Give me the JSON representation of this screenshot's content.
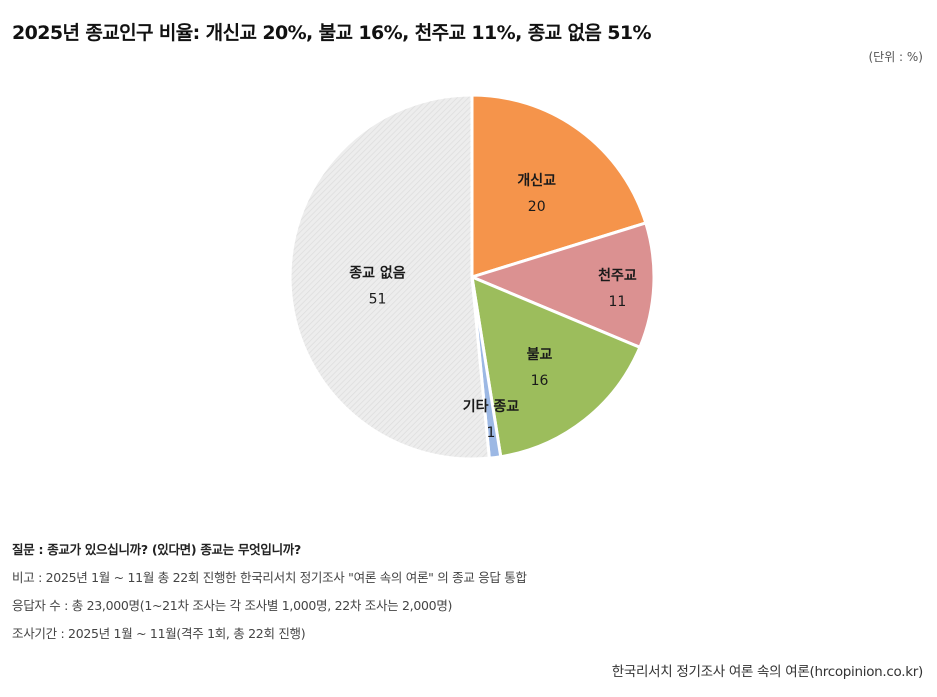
{
  "header": {
    "title": "2025년 종교인구 비율: 개신교 20%, 불교 16%, 천주교 11%, 종교 없음 51%",
    "unit": "(단위 : %)"
  },
  "chart_data": {
    "type": "pie",
    "title": "2025년 종교인구 비율: 개신교 20%, 불교 16%, 천주교 11%, 종교 없음 51%",
    "unit": "%",
    "slices": [
      {
        "label": "개신교",
        "value": 20,
        "color": "#f5944b"
      },
      {
        "label": "천주교",
        "value": 11,
        "color": "#db9191"
      },
      {
        "label": "불교",
        "value": 16,
        "color": "#9cbd5c"
      },
      {
        "label": "기타 종교",
        "value": 1,
        "color": "#9cb8e4"
      },
      {
        "label": "종교 없음",
        "value": 51,
        "color": "#ececec"
      }
    ]
  },
  "notes": {
    "question": "질문 : 종교가 있으십니까? (있다면) 종교는 무엇입니까?",
    "remark": "비고 : 2025년 1월 ~ 11월 총 22회 진행한 한국리서치 정기조사 \"여론 속의 여론\" 의 종교 응답 통합",
    "respondents": "응답자 수 : 총 23,000명(1~21차 조사는 각 조사별 1,000명, 22차 조사는 2,000명)",
    "period": "조사기간 : 2025년 1월 ~ 11월(격주 1회, 총 22회 진행)"
  },
  "source": "한국리서치 정기조사 여론 속의 여론(hrcopinion.co.kr)"
}
